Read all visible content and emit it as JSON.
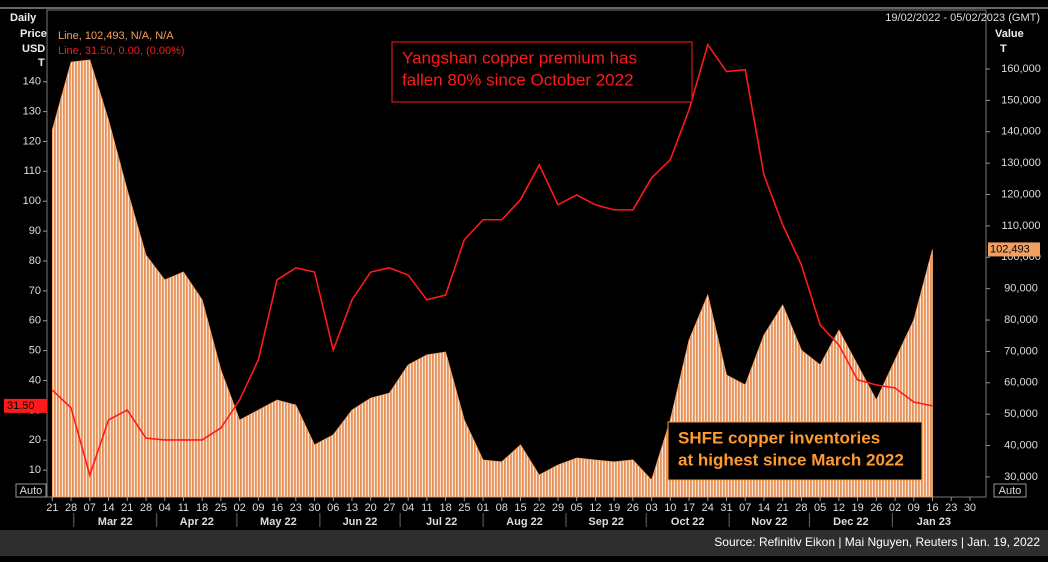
{
  "chart_data": {
    "type": "line",
    "period": "Daily",
    "date_range": "19/02/2022 - 05/02/2023 (GMT)",
    "y_label": [
      "Price",
      "USD",
      "T"
    ],
    "y2_label": [
      "Value",
      "T"
    ],
    "auto_buttons": [
      "Auto",
      "Auto"
    ],
    "source": "Source: Refinitiv Eikon | Mai Nguyen, Reuters | Jan. 19, 2022",
    "annotations": [
      {
        "text": [
          "Yangshan copper premium has",
          "fallen 80% since October 2022"
        ],
        "color": "#ff1a1a"
      },
      {
        "text": [
          "SHFE copper inventories",
          "at highest since March 2022"
        ],
        "color": "#ff9a2e"
      }
    ],
    "xlim": [
      "2022-02-19",
      "2023-02-05"
    ],
    "ylim": [
      1,
      164
    ],
    "y2lim": [
      23600,
      178800
    ],
    "xticks": [
      {
        "value": "2022-02-21",
        "label": "21"
      },
      {
        "value": "2022-02-28",
        "label": "28"
      },
      {
        "value": "2022-03-07",
        "label": "07"
      },
      {
        "value": "2022-03-14",
        "label": "14"
      },
      {
        "value": "2022-03-21",
        "label": "21"
      },
      {
        "value": "2022-03-28",
        "label": "28"
      },
      {
        "value": "2022-04-04",
        "label": "04"
      },
      {
        "value": "2022-04-11",
        "label": "11"
      },
      {
        "value": "2022-04-18",
        "label": "18"
      },
      {
        "value": "2022-04-25",
        "label": "25"
      },
      {
        "value": "2022-05-02",
        "label": "02"
      },
      {
        "value": "2022-05-09",
        "label": "09"
      },
      {
        "value": "2022-05-16",
        "label": "16"
      },
      {
        "value": "2022-05-23",
        "label": "23"
      },
      {
        "value": "2022-05-30",
        "label": "30"
      },
      {
        "value": "2022-06-06",
        "label": "06"
      },
      {
        "value": "2022-06-13",
        "label": "13"
      },
      {
        "value": "2022-06-20",
        "label": "20"
      },
      {
        "value": "2022-06-27",
        "label": "27"
      },
      {
        "value": "2022-07-04",
        "label": "04"
      },
      {
        "value": "2022-07-11",
        "label": "11"
      },
      {
        "value": "2022-07-18",
        "label": "18"
      },
      {
        "value": "2022-07-25",
        "label": "25"
      },
      {
        "value": "2022-08-01",
        "label": "01"
      },
      {
        "value": "2022-08-08",
        "label": "08"
      },
      {
        "value": "2022-08-15",
        "label": "15"
      },
      {
        "value": "2022-08-22",
        "label": "22"
      },
      {
        "value": "2022-08-29",
        "label": "29"
      },
      {
        "value": "2022-09-05",
        "label": "05"
      },
      {
        "value": "2022-09-12",
        "label": "12"
      },
      {
        "value": "2022-09-19",
        "label": "19"
      },
      {
        "value": "2022-09-26",
        "label": "26"
      },
      {
        "value": "2022-10-03",
        "label": "03"
      },
      {
        "value": "2022-10-10",
        "label": "10"
      },
      {
        "value": "2022-10-17",
        "label": "17"
      },
      {
        "value": "2022-10-24",
        "label": "24"
      },
      {
        "value": "2022-10-31",
        "label": "31"
      },
      {
        "value": "2022-11-07",
        "label": "07"
      },
      {
        "value": "2022-11-14",
        "label": "14"
      },
      {
        "value": "2022-11-21",
        "label": "21"
      },
      {
        "value": "2022-11-28",
        "label": "28"
      },
      {
        "value": "2022-12-05",
        "label": "05"
      },
      {
        "value": "2022-12-12",
        "label": "12"
      },
      {
        "value": "2022-12-19",
        "label": "19"
      },
      {
        "value": "2022-12-26",
        "label": "26"
      },
      {
        "value": "2023-01-02",
        "label": "02"
      },
      {
        "value": "2023-01-09",
        "label": "09"
      },
      {
        "value": "2023-01-16",
        "label": "16"
      },
      {
        "value": "2023-01-23",
        "label": "23"
      },
      {
        "value": "2023-01-30",
        "label": "30"
      }
    ],
    "month_labels": [
      {
        "value": "2022-03",
        "label": "Mar 22"
      },
      {
        "value": "2022-04",
        "label": "Apr 22"
      },
      {
        "value": "2022-05",
        "label": "May 22"
      },
      {
        "value": "2022-06",
        "label": "Jun 22"
      },
      {
        "value": "2022-07",
        "label": "Jul 22"
      },
      {
        "value": "2022-08",
        "label": "Aug 22"
      },
      {
        "value": "2022-09",
        "label": "Sep 22"
      },
      {
        "value": "2022-10",
        "label": "Oct 22"
      },
      {
        "value": "2022-11",
        "label": "Nov 22"
      },
      {
        "value": "2022-12",
        "label": "Dec 22"
      },
      {
        "value": "2023-01",
        "label": "Jan 23"
      }
    ],
    "yticks": [
      10,
      20,
      30,
      40,
      50,
      60,
      70,
      80,
      90,
      100,
      110,
      120,
      130,
      140
    ],
    "y2ticks": [
      {
        "value": 30000,
        "label": "30,000"
      },
      {
        "value": 40000,
        "label": "40,000"
      },
      {
        "value": 50000,
        "label": "50,000"
      },
      {
        "value": 60000,
        "label": "60,000"
      },
      {
        "value": 70000,
        "label": "70,000"
      },
      {
        "value": 80000,
        "label": "80,000"
      },
      {
        "value": 90000,
        "label": "90,000"
      },
      {
        "value": 100000,
        "label": "100,000"
      },
      {
        "value": 110000,
        "label": "110,000"
      },
      {
        "value": 120000,
        "label": "120,000"
      },
      {
        "value": 130000,
        "label": "130,000"
      },
      {
        "value": 140000,
        "label": "140,000"
      },
      {
        "value": 150000,
        "label": "150,000"
      },
      {
        "value": 160000,
        "label": "160,000"
      }
    ],
    "x": [
      "2022-02-21",
      "2022-02-28",
      "2022-03-07",
      "2022-03-14",
      "2022-03-21",
      "2022-03-28",
      "2022-04-04",
      "2022-04-11",
      "2022-04-18",
      "2022-04-25",
      "2022-05-02",
      "2022-05-09",
      "2022-05-16",
      "2022-05-23",
      "2022-05-30",
      "2022-06-06",
      "2022-06-13",
      "2022-06-20",
      "2022-06-27",
      "2022-07-04",
      "2022-07-11",
      "2022-07-18",
      "2022-07-25",
      "2022-08-01",
      "2022-08-08",
      "2022-08-15",
      "2022-08-22",
      "2022-08-29",
      "2022-09-05",
      "2022-09-12",
      "2022-09-19",
      "2022-09-26",
      "2022-10-03",
      "2022-10-10",
      "2022-10-17",
      "2022-10-24",
      "2022-10-31",
      "2022-11-07",
      "2022-11-14",
      "2022-11-21",
      "2022-11-28",
      "2022-12-05",
      "2022-12-12",
      "2022-12-19",
      "2022-12-26",
      "2023-01-02",
      "2023-01-09",
      "2023-01-16"
    ],
    "series": [
      {
        "name": "Line, 102,493, N/A, N/A",
        "type": "area",
        "axis": "y2",
        "color": "#f2a061",
        "values": [
          140600,
          162200,
          162900,
          143700,
          121400,
          100700,
          92800,
          95300,
          86400,
          64100,
          48100,
          51300,
          54500,
          52900,
          40200,
          43400,
          51300,
          55100,
          56700,
          65700,
          68900,
          69800,
          48100,
          35400,
          34800,
          40200,
          30600,
          33800,
          36000,
          35400,
          34800,
          35400,
          29000,
          48100,
          73600,
          88000,
          62500,
          59300,
          75200,
          84800,
          70400,
          65700,
          76800,
          65700,
          54500,
          67300,
          80000,
          102493
        ],
        "value_labels": [
          null,
          null,
          null,
          null,
          null,
          null,
          null,
          null,
          null,
          null,
          null,
          null,
          null,
          null,
          null,
          null,
          null,
          null,
          null,
          null,
          null,
          null,
          null,
          null,
          null,
          null,
          null,
          null,
          null,
          null,
          null,
          null,
          null,
          null,
          null,
          null,
          null,
          null,
          null,
          null,
          null,
          null,
          null,
          null,
          null,
          null,
          null,
          "102,493"
        ]
      },
      {
        "name": "Line, 31.50, 0.00, (0.00%)",
        "type": "line",
        "axis": "y",
        "color": "#ff1a1a",
        "values": [
          36.8,
          30.8,
          8.3,
          26.8,
          30.1,
          20.7,
          20.1,
          20.1,
          20.1,
          24.1,
          33.5,
          46.9,
          73.7,
          77.7,
          76.3,
          50.2,
          67.0,
          76.3,
          77.7,
          75.3,
          67.0,
          68.6,
          87.1,
          93.8,
          93.8,
          100.5,
          112.2,
          98.8,
          102.1,
          98.8,
          97.1,
          97.1,
          107.8,
          113.9,
          130.6,
          152.4,
          143.4,
          144.0,
          108.8,
          92.1,
          78.7,
          58.6,
          51.9,
          40.2,
          38.5,
          37.5,
          32.8,
          31.5
        ],
        "value_labels": [
          null,
          null,
          null,
          null,
          null,
          null,
          null,
          null,
          null,
          null,
          null,
          null,
          null,
          null,
          null,
          null,
          null,
          null,
          null,
          null,
          null,
          null,
          null,
          null,
          null,
          null,
          null,
          null,
          null,
          null,
          null,
          null,
          null,
          null,
          null,
          null,
          null,
          null,
          null,
          null,
          null,
          null,
          null,
          null,
          null,
          null,
          null,
          "31.50"
        ]
      }
    ]
  }
}
